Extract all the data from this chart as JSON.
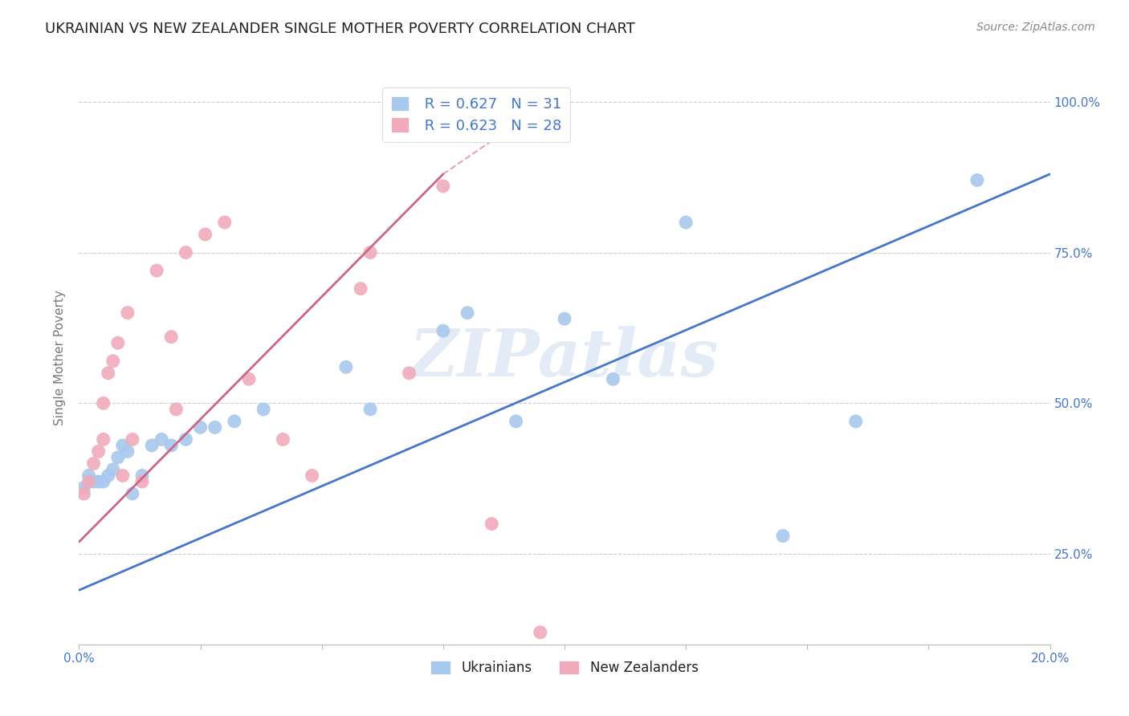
{
  "title": "UKRAINIAN VS NEW ZEALANDER SINGLE MOTHER POVERTY CORRELATION CHART",
  "source": "Source: ZipAtlas.com",
  "ylabel": "Single Mother Poverty",
  "xlim": [
    0.0,
    0.2
  ],
  "ylim": [
    0.1,
    1.05
  ],
  "xticks": [
    0.0,
    0.025,
    0.05,
    0.075,
    0.1,
    0.125,
    0.15,
    0.175,
    0.2
  ],
  "xtick_labels": [
    "0.0%",
    "",
    "",
    "",
    "",
    "",
    "",
    "",
    "20.0%"
  ],
  "ytick_labels": [
    "25.0%",
    "50.0%",
    "75.0%",
    "100.0%"
  ],
  "yticks": [
    0.25,
    0.5,
    0.75,
    1.0
  ],
  "blue_scatter_x": [
    0.001,
    0.002,
    0.003,
    0.004,
    0.005,
    0.006,
    0.007,
    0.008,
    0.009,
    0.01,
    0.011,
    0.013,
    0.015,
    0.017,
    0.019,
    0.022,
    0.025,
    0.028,
    0.032,
    0.038,
    0.055,
    0.06,
    0.075,
    0.08,
    0.09,
    0.1,
    0.11,
    0.125,
    0.145,
    0.16,
    0.185
  ],
  "blue_scatter_y": [
    0.36,
    0.38,
    0.37,
    0.37,
    0.37,
    0.38,
    0.39,
    0.41,
    0.43,
    0.42,
    0.35,
    0.38,
    0.43,
    0.44,
    0.43,
    0.44,
    0.46,
    0.46,
    0.47,
    0.49,
    0.56,
    0.49,
    0.62,
    0.65,
    0.47,
    0.64,
    0.54,
    0.8,
    0.28,
    0.47,
    0.87
  ],
  "pink_scatter_x": [
    0.001,
    0.002,
    0.003,
    0.004,
    0.005,
    0.005,
    0.006,
    0.007,
    0.008,
    0.009,
    0.01,
    0.011,
    0.013,
    0.016,
    0.019,
    0.02,
    0.022,
    0.026,
    0.03,
    0.035,
    0.042,
    0.048,
    0.058,
    0.06,
    0.068,
    0.075,
    0.085,
    0.095
  ],
  "pink_scatter_y": [
    0.35,
    0.37,
    0.4,
    0.42,
    0.44,
    0.5,
    0.55,
    0.57,
    0.6,
    0.38,
    0.65,
    0.44,
    0.37,
    0.72,
    0.61,
    0.49,
    0.75,
    0.78,
    0.8,
    0.54,
    0.44,
    0.38,
    0.69,
    0.75,
    0.55,
    0.86,
    0.3,
    0.12
  ],
  "blue_line_x": [
    0.0,
    0.2
  ],
  "blue_line_y": [
    0.19,
    0.88
  ],
  "pink_line_x": [
    0.0,
    0.075
  ],
  "pink_line_y": [
    0.27,
    0.88
  ],
  "blue_color": "#a8c8ed",
  "pink_color": "#f0aabb",
  "blue_line_color": "#4477cc",
  "pink_line_color": "#cc6688",
  "legend_r_color": "#4477cc",
  "legend_n_color": "#cc3333",
  "legend_blue_r": "R = 0.627",
  "legend_blue_n": "N = 31",
  "legend_pink_r": "R = 0.623",
  "legend_pink_n": "N = 28",
  "watermark_text": "ZIPatlas",
  "watermark_color": "#c8d8ee",
  "background_color": "#ffffff",
  "grid_color": "#cccccc",
  "title_color": "#222222",
  "axis_label_color": "#777777",
  "tick_color": "#4477cc",
  "source_color": "#888888"
}
